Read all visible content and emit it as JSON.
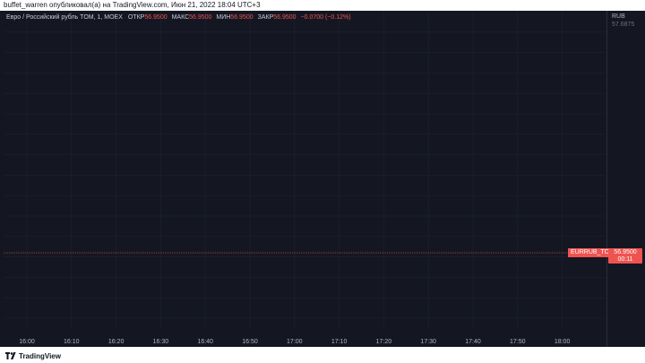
{
  "publisher_line": "buffet_warren опубликовал(а) на TradingView.com, Июн 21, 2022 18:04 UTC+3",
  "symbol_info": "Евро / Российский рубль TOM, 1, MOEX",
  "ohlc": {
    "open_label": "ОТКР",
    "open_value": "56.9500",
    "high_label": "МАКС",
    "high_value": "56.9500",
    "low_label": "МИН",
    "low_value": "56.9500",
    "close_label": "ЗАКР",
    "close_value": "56.9500",
    "change": "−0.0700 (−0.12%)"
  },
  "currency": "RUB",
  "top_cut_label": "57.6875",
  "current_price": {
    "symbol": "EURRUB_TOM",
    "value": "56.9500",
    "countdown": "00:11"
  },
  "brand": "TradingView",
  "colors": {
    "background": "#141722",
    "up": "#26a69a",
    "down": "#ef5350",
    "text": "#b2b5be",
    "grid": "#1e2230"
  },
  "chart_data": {
    "type": "candlestick",
    "title": "",
    "ylabel": "RUB",
    "ylim": [
      56.75,
      57.6875
    ],
    "yticks": [
      "57.6250",
      "57.5625",
      "57.5000",
      "57.4375",
      "57.3750",
      "57.3125",
      "57.2500",
      "57.1875",
      "57.1250",
      "57.0625",
      "57.0000",
      "56.9375",
      "56.8750",
      "56.8125",
      "56.7500"
    ],
    "xticks": [
      "16:00",
      "16:10",
      "16:20",
      "16:30",
      "16:40",
      "16:50",
      "17:00",
      "17:10",
      "17:20",
      "17:30",
      "17:40",
      "17:50",
      "18:00"
    ],
    "last_price": 56.95,
    "candles": []
  }
}
